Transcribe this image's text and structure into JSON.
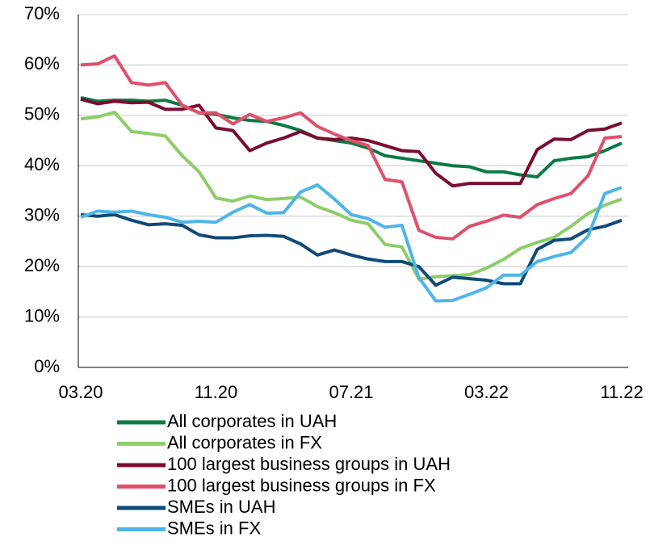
{
  "chart_data": {
    "type": "line",
    "categories": [
      "03.20",
      null,
      null,
      null,
      null,
      null,
      null,
      null,
      "11.20",
      null,
      null,
      null,
      null,
      null,
      null,
      null,
      "07.21",
      null,
      null,
      null,
      null,
      null,
      null,
      null,
      "03.22",
      null,
      null,
      null,
      null,
      null,
      null,
      null,
      "11.22"
    ],
    "series": [
      {
        "name": "All corporates in UAH",
        "color": "#0b7a45",
        "values": [
          53.5,
          52.8,
          53,
          53,
          52.8,
          53,
          52,
          50.5,
          50.2,
          49.5,
          49,
          48.8,
          48,
          47,
          45.5,
          45,
          44.5,
          43.5,
          42,
          41.5,
          41,
          40.5,
          40,
          39.8,
          38.8,
          38.8,
          38.2,
          37.8,
          41,
          41.5,
          41.8,
          43,
          44.5
        ]
      },
      {
        "name": "All corporates in FX",
        "color": "#8dcd68",
        "values": [
          49.3,
          49.7,
          50.6,
          46.8,
          46.4,
          45.9,
          42,
          38.8,
          33.6,
          33,
          34,
          33.3,
          33.5,
          33.8,
          31.9,
          30.7,
          29.2,
          28.5,
          24.4,
          23.9,
          17.5,
          18,
          18.2,
          18.4,
          19.7,
          21.4,
          23.6,
          24.8,
          25.8,
          28,
          30.5,
          32.2,
          33.4
        ]
      },
      {
        "name": "100 largest business groups in UAH",
        "color": "#7a0d2f",
        "values": [
          53.2,
          52.3,
          52.8,
          52.5,
          52.6,
          51.2,
          51.2,
          52,
          47.5,
          47,
          43,
          44.5,
          45.5,
          46.8,
          45.5,
          45.2,
          45.5,
          45,
          44,
          43,
          42.8,
          38.5,
          36,
          36.5,
          36.5,
          36.5,
          36.5,
          43.2,
          45.3,
          45.2,
          47,
          47.3,
          48.5
        ]
      },
      {
        "name": "100 largest business groups in FX",
        "color": "#e0506a",
        "values": [
          60,
          60.2,
          61.8,
          56.5,
          56,
          56.5,
          52,
          50.5,
          50.5,
          48.3,
          50.2,
          48.8,
          49.5,
          50.5,
          47.8,
          46.3,
          45,
          44,
          37.3,
          36.8,
          27.2,
          25.8,
          25.5,
          28,
          29,
          30.2,
          29.8,
          32.3,
          33.5,
          34.5,
          38,
          45.5,
          45.8
        ]
      },
      {
        "name": "SMEs in UAH",
        "color": "#0f4a78",
        "values": [
          30.3,
          30,
          30.3,
          29.2,
          28.3,
          28.5,
          28.2,
          26.3,
          25.7,
          25.7,
          26.1,
          26.2,
          26,
          24.5,
          22.3,
          23.3,
          22.3,
          21.5,
          21,
          21,
          20,
          16.3,
          17.9,
          17.6,
          17.3,
          16.6,
          16.6,
          23.4,
          25.2,
          25.5,
          27.3,
          28,
          29.2
        ]
      },
      {
        "name": "SMEs in FX",
        "color": "#4db5e8",
        "values": [
          29.8,
          31,
          30.8,
          31,
          30.3,
          29.8,
          28.8,
          29,
          28.8,
          30.8,
          32.3,
          30.6,
          30.7,
          34.8,
          36.2,
          33.4,
          30.3,
          29.5,
          27.8,
          28.2,
          17.8,
          13.2,
          13.3,
          14.5,
          15.8,
          18.3,
          18.3,
          21,
          22,
          22.8,
          26,
          34.5,
          35.7
        ]
      }
    ],
    "ylim": [
      0,
      70
    ],
    "yticks": [
      {
        "value": 0,
        "label": "0%"
      },
      {
        "value": 10,
        "label": "10%"
      },
      {
        "value": 20,
        "label": "20%"
      },
      {
        "value": 30,
        "label": "30%"
      },
      {
        "value": 40,
        "label": "40%"
      },
      {
        "value": 50,
        "label": "50%"
      },
      {
        "value": 60,
        "label": "60%"
      },
      {
        "value": 70,
        "label": "70%"
      }
    ],
    "grid": true
  }
}
